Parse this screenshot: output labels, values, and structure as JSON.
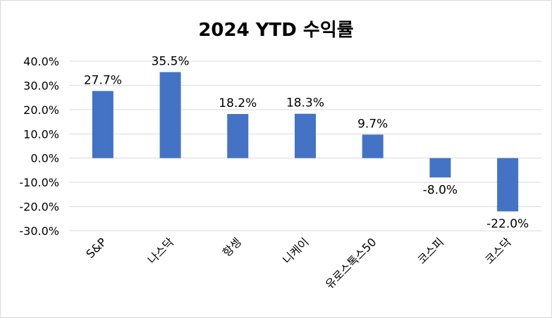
{
  "chart_data": {
    "type": "bar",
    "title": "2024 YTD 수익률",
    "categories": [
      "S&P",
      "나스닥",
      "항셍",
      "니케이",
      "유로스톡스50",
      "코스피",
      "코스닥"
    ],
    "values": [
      27.7,
      35.5,
      18.2,
      18.3,
      9.7,
      -8.0,
      -22.0
    ],
    "data_labels": [
      "27.7%",
      "35.5%",
      "18.2%",
      "18.3%",
      "9.7%",
      "-8.0%",
      "-22.0%"
    ],
    "y_ticks": [
      40,
      30,
      20,
      10,
      0,
      -10,
      -20,
      -30
    ],
    "y_tick_labels": [
      "40.0%",
      "30.0%",
      "20.0%",
      "10.0%",
      "0.0%",
      "-10.0%",
      "-20.0%",
      "-30.0%"
    ],
    "ylim": [
      -30,
      40
    ],
    "xlabel": "",
    "ylabel": "",
    "grid": true,
    "legend": "none",
    "bar_color": "#4472c4",
    "grid_color": "#d9d9d9"
  }
}
